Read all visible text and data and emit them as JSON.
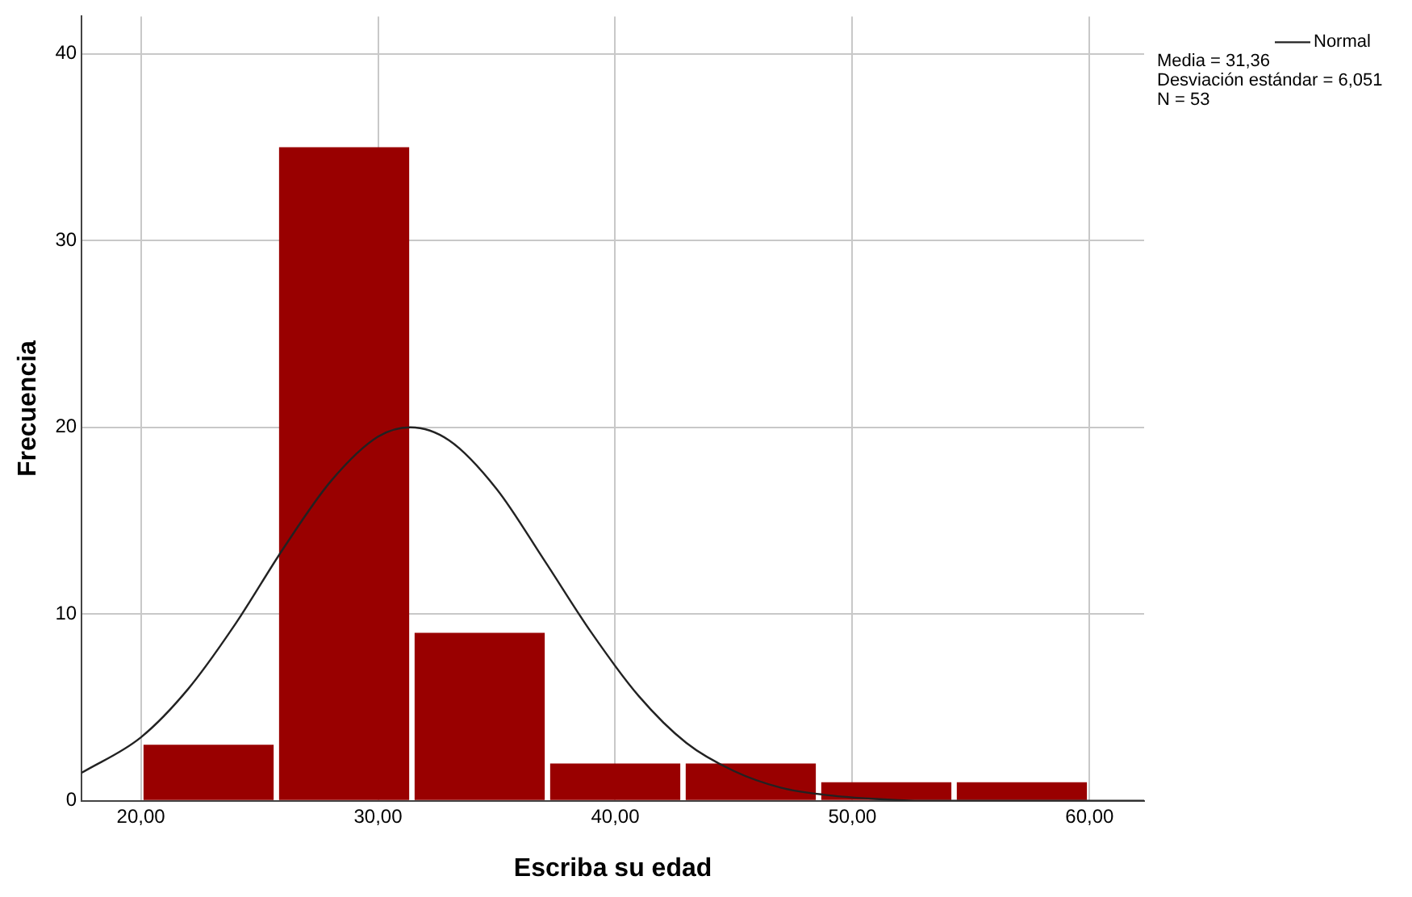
{
  "chart_data": {
    "type": "histogram",
    "xlabel": "Escriba su edad",
    "ylabel": "Frecuencia",
    "bins": [
      20,
      25.71,
      31.43,
      37.14,
      42.86,
      48.57,
      54.29,
      60
    ],
    "values": [
      3,
      35,
      9,
      2,
      2,
      1,
      1
    ],
    "color": "#990000",
    "xlim": [
      17.5,
      62.3
    ],
    "ylim": [
      0,
      42
    ],
    "xticks": [
      {
        "value": 20,
        "label": "20,00"
      },
      {
        "value": 30,
        "label": "30,00"
      },
      {
        "value": 40,
        "label": "40,00"
      },
      {
        "value": 50,
        "label": "50,00"
      },
      {
        "value": 60,
        "label": "60,00"
      }
    ],
    "yticks": [
      0,
      10,
      20,
      30,
      40
    ],
    "grid": true,
    "legend": "top right",
    "series": [
      {
        "type": "line",
        "name": "Normal",
        "color": "#222222",
        "marker": "none",
        "line_style": "solid",
        "x": [
          17.5,
          20,
          22,
          24,
          26,
          28,
          30,
          31.36,
          33,
          35,
          37,
          39,
          41,
          43,
          45,
          47,
          49,
          51,
          53,
          55,
          57,
          60,
          62.3
        ],
        "values": [
          1.5,
          3.4,
          6,
          9.5,
          13.5,
          17.1,
          19.5,
          20,
          19.3,
          16.7,
          12.9,
          9,
          5.6,
          3.1,
          1.6,
          0.7,
          0.3,
          0.1,
          0,
          0,
          0,
          0,
          0
        ]
      }
    ],
    "annotations": [
      "Media = 31,36",
      "Desviación estándar = 6,051",
      "N = 53"
    ]
  }
}
